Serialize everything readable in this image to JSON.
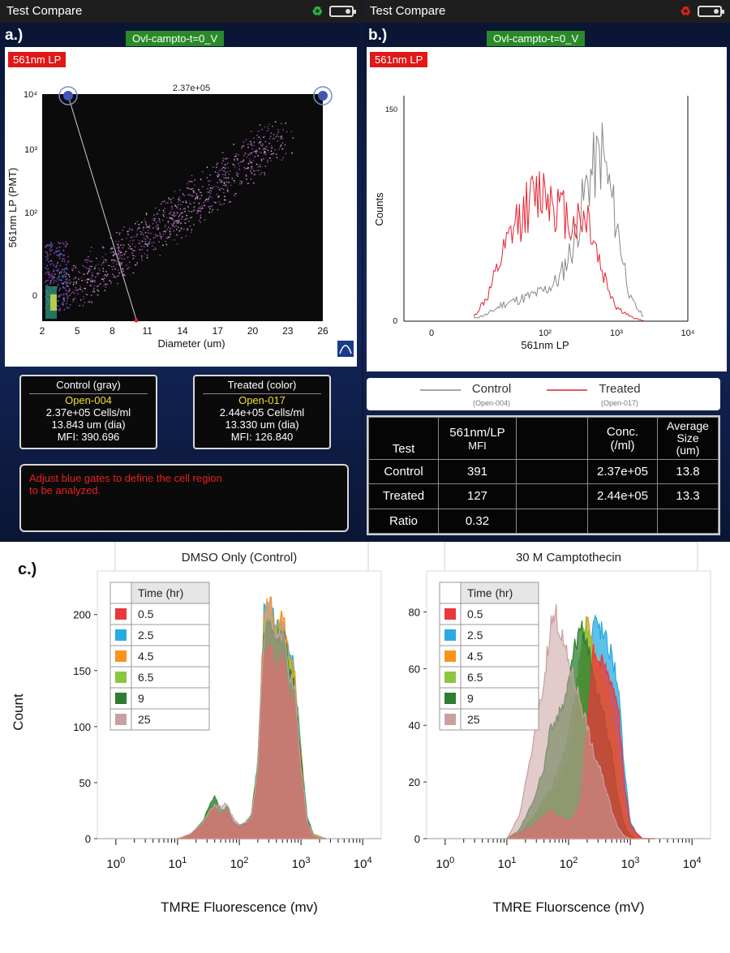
{
  "panel_a": {
    "label": "a.)",
    "window_title": "Test Compare",
    "sample_name": "Ovl-campto-t=0_V",
    "channel": "561nm LP",
    "gate_value": "2.37e+05",
    "xlabel": "Diameter (um)",
    "ylabel": "561nm LP (PMT)",
    "xticks": [
      "2",
      "5",
      "8",
      "11",
      "14",
      "17",
      "20",
      "23",
      "26"
    ],
    "yticks": [
      "0",
      "10²",
      "10³",
      "10⁴"
    ],
    "control_box": {
      "title": "Control (gray)",
      "file": "Open-004",
      "conc": "2.37e+05 Cells/ml",
      "dia": "13.843 um (dia)",
      "mfi": "MFI: 390.696"
    },
    "treated_box": {
      "title": "Treated (color)",
      "file": "Open-017",
      "conc": "2.44e+05 Cells/ml",
      "dia": "13.330 um (dia)",
      "mfi": "MFI: 126.840"
    },
    "message_line1": "Adjust blue gates to define the cell region",
    "message_line2": "to be analyzed."
  },
  "panel_b": {
    "label": "b.)",
    "window_title": "Test Compare",
    "sample_name": "Ovl-campto-t=0_V",
    "channel": "561nm LP",
    "ylabel": "Counts",
    "xlabel": "561nm LP",
    "ymax_label": "150",
    "yzero_label": "0",
    "xticks": [
      "0",
      "10²",
      "10³",
      "10⁴"
    ],
    "legend": [
      {
        "name": "Control",
        "sub": "(Open-004)",
        "color": "#888888"
      },
      {
        "name": "Treated",
        "sub": "(Open-017)",
        "color": "#e82030"
      }
    ],
    "table": {
      "headers": [
        "Test",
        "561nm/LP MFI",
        "",
        "Conc. (/ml)",
        "Average Size (um)"
      ],
      "header_line1": [
        "",
        "561nm/LP",
        "",
        "Conc.",
        "Average"
      ],
      "header_line2": [
        "Test",
        "MFI",
        "",
        "(/ml)",
        "Size"
      ],
      "header_line3": [
        "",
        "",
        "",
        "",
        "(um)"
      ],
      "rows": [
        [
          "Control",
          "391",
          "",
          "2.37e+05",
          "13.8"
        ],
        [
          "Treated",
          "127",
          "",
          "2.44e+05",
          "13.3"
        ],
        [
          "Ratio",
          "0.32",
          "",
          "",
          ""
        ]
      ]
    }
  },
  "panel_c": {
    "label": "c.)",
    "legend_header": "Time (hr)",
    "ylabel": "Count",
    "times": [
      "0.5",
      "2.5",
      "4.5",
      "6.5",
      "9",
      "25"
    ],
    "colors": [
      "#e8383c",
      "#29abe2",
      "#f7941d",
      "#8dc63f",
      "#2e7d32",
      "#c9a0a0"
    ]
  },
  "chart_data": [
    {
      "type": "scatter",
      "title": "",
      "xlabel": "Diameter (um)",
      "ylabel": "561nm LP (PMT)",
      "xlim": [
        2,
        26
      ],
      "description_series": [
        {
          "name": "",
          "x": [
            3,
            5,
            8,
            11,
            14,
            17,
            20,
            23
          ],
          "y": [
            20,
            60,
            120,
            200,
            400,
            700,
            1000,
            1500
          ]
        }
      ]
    },
    {
      "type": "line",
      "title": "",
      "xlabel": "561nm LP",
      "ylabel": "Counts",
      "ylim": [
        0,
        150
      ],
      "x_log": [
        1.0,
        1.2,
        1.4,
        1.6,
        1.8,
        2.0,
        2.2,
        2.4,
        2.6,
        2.8,
        3.0,
        3.2,
        3.4
      ],
      "series": [
        {
          "name": "Control",
          "values": [
            2,
            5,
            12,
            15,
            18,
            22,
            30,
            55,
            100,
            120,
            70,
            15,
            2
          ]
        },
        {
          "name": "Treated",
          "values": [
            3,
            18,
            45,
            70,
            85,
            95,
            80,
            70,
            75,
            35,
            10,
            3,
            0
          ]
        }
      ]
    },
    {
      "type": "area",
      "title": "DMSO Only (Control)",
      "xlabel": "TMRE Fluorescence (mv)",
      "ylabel": "Count",
      "ylim": [
        0,
        215
      ],
      "yticks": [
        0,
        50,
        100,
        150,
        200
      ],
      "x_log": [
        1.0,
        1.2,
        1.4,
        1.6,
        1.7,
        1.8,
        1.9,
        2.0,
        2.1,
        2.2,
        2.3,
        2.4,
        2.5,
        2.6,
        2.7,
        2.8,
        2.9,
        3.0,
        3.1,
        3.2,
        3.4
      ],
      "series": [
        {
          "name": "0.5",
          "values": [
            0,
            3,
            12,
            28,
            20,
            25,
            14,
            10,
            12,
            18,
            60,
            170,
            175,
            150,
            160,
            130,
            120,
            60,
            15,
            3,
            0
          ]
        },
        {
          "name": "2.5",
          "values": [
            0,
            3,
            14,
            32,
            22,
            28,
            15,
            12,
            14,
            22,
            70,
            200,
            205,
            190,
            195,
            170,
            150,
            80,
            20,
            4,
            0
          ]
        },
        {
          "name": "4.5",
          "values": [
            0,
            3,
            13,
            30,
            21,
            27,
            15,
            11,
            13,
            20,
            65,
            195,
            210,
            185,
            200,
            165,
            145,
            75,
            18,
            4,
            0
          ]
        },
        {
          "name": "6.5",
          "values": [
            0,
            3,
            14,
            33,
            22,
            28,
            15,
            11,
            14,
            22,
            68,
            190,
            200,
            180,
            190,
            160,
            140,
            72,
            18,
            4,
            0
          ]
        },
        {
          "name": "9",
          "values": [
            0,
            3,
            15,
            38,
            25,
            28,
            15,
            11,
            14,
            22,
            65,
            185,
            195,
            175,
            185,
            155,
            135,
            70,
            17,
            3,
            0
          ]
        },
        {
          "name": "25",
          "values": [
            0,
            4,
            14,
            30,
            28,
            32,
            18,
            12,
            14,
            20,
            60,
            180,
            215,
            170,
            190,
            150,
            130,
            65,
            15,
            3,
            0
          ]
        }
      ]
    },
    {
      "type": "area",
      "title": "30 M Camptothecin",
      "xlabel": "TMRE Fluorscence (mV)",
      "ylabel": "",
      "ylim": [
        0,
        85
      ],
      "yticks": [
        0,
        20,
        40,
        60,
        80
      ],
      "x_log": [
        1.0,
        1.2,
        1.4,
        1.6,
        1.7,
        1.8,
        1.9,
        2.0,
        2.1,
        2.2,
        2.3,
        2.4,
        2.5,
        2.6,
        2.7,
        2.8,
        2.9,
        3.0,
        3.1,
        3.2,
        3.4
      ],
      "series": [
        {
          "name": "0.5",
          "values": [
            0,
            2,
            4,
            8,
            10,
            8,
            7,
            6,
            8,
            14,
            40,
            68,
            62,
            60,
            55,
            48,
            20,
            5,
            2,
            0,
            0
          ]
        },
        {
          "name": "2.5",
          "values": [
            0,
            2,
            4,
            8,
            10,
            9,
            8,
            7,
            9,
            16,
            45,
            77,
            75,
            70,
            65,
            55,
            25,
            6,
            2,
            0,
            0
          ]
        },
        {
          "name": "4.5",
          "values": [
            0,
            2,
            6,
            12,
            15,
            18,
            22,
            28,
            40,
            62,
            78,
            65,
            60,
            55,
            45,
            30,
            10,
            3,
            1,
            0,
            0
          ]
        },
        {
          "name": "6.5",
          "values": [
            0,
            2,
            7,
            14,
            17,
            22,
            28,
            35,
            48,
            68,
            76,
            62,
            58,
            50,
            40,
            25,
            8,
            2,
            0,
            0,
            0
          ]
        },
        {
          "name": "9",
          "values": [
            0,
            3,
            12,
            25,
            38,
            42,
            46,
            55,
            68,
            76,
            70,
            55,
            50,
            40,
            30,
            15,
            5,
            1,
            0,
            0,
            0
          ]
        },
        {
          "name": "25",
          "values": [
            0,
            8,
            30,
            55,
            75,
            79,
            70,
            62,
            55,
            48,
            40,
            30,
            25,
            18,
            10,
            4,
            1,
            0,
            0,
            0,
            0
          ]
        }
      ]
    }
  ]
}
